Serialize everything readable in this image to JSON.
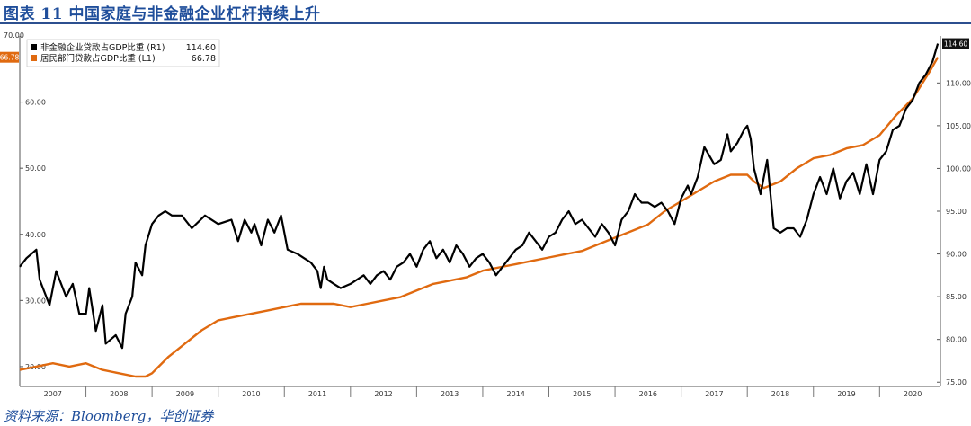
{
  "figure": {
    "title": "图表 11    中国家庭与非金融企业杠杆持续上升",
    "source": "资料来源：Bloomberg，华创证券"
  },
  "chart_data": {
    "type": "line",
    "title": "",
    "x_range": [
      2007.0,
      2020.92
    ],
    "x_ticks": [
      "2007",
      "2008",
      "2009",
      "2010",
      "2011",
      "2012",
      "2013",
      "2014",
      "2015",
      "2016",
      "2017",
      "2018",
      "2019",
      "2020"
    ],
    "y_left": {
      "ticks": [
        "20.00",
        "30.00",
        "40.00",
        "50.00",
        "60.00"
      ],
      "range": [
        17,
        70
      ],
      "top_tick_label": "70.00"
    },
    "y_right": {
      "ticks": [
        "75.00",
        "80.00",
        "85.00",
        "90.00",
        "95.00",
        "100.00",
        "105.00",
        "110.00"
      ],
      "range": [
        74.5,
        115.5
      ]
    },
    "grid": false,
    "legend_position": "top-left",
    "series": [
      {
        "name": "非金融企业贷款占GDP比重 (R1)",
        "legend_value": "114.60",
        "axis": "right",
        "color": "#000000",
        "x": [
          2007.0,
          2007.1,
          2007.25,
          2007.3,
          2007.45,
          2007.55,
          2007.7,
          2007.8,
          2007.9,
          2008.0,
          2008.05,
          2008.15,
          2008.25,
          2008.3,
          2008.45,
          2008.55,
          2008.6,
          2008.7,
          2008.75,
          2008.85,
          2008.9,
          2009.0,
          2009.1,
          2009.2,
          2009.3,
          2009.45,
          2009.6,
          2009.8,
          2010.0,
          2010.2,
          2010.3,
          2010.4,
          2010.5,
          2010.55,
          2010.65,
          2010.75,
          2010.85,
          2010.95,
          2011.05,
          2011.2,
          2011.3,
          2011.4,
          2011.5,
          2011.55,
          2011.6,
          2011.65,
          2011.75,
          2011.85,
          2012.0,
          2012.1,
          2012.2,
          2012.3,
          2012.4,
          2012.5,
          2012.6,
          2012.7,
          2012.8,
          2012.9,
          2013.0,
          2013.1,
          2013.2,
          2013.3,
          2013.4,
          2013.5,
          2013.6,
          2013.7,
          2013.8,
          2013.9,
          2014.0,
          2014.1,
          2014.2,
          2014.3,
          2014.4,
          2014.5,
          2014.6,
          2014.7,
          2014.8,
          2014.9,
          2015.0,
          2015.1,
          2015.2,
          2015.3,
          2015.4,
          2015.5,
          2015.6,
          2015.7,
          2015.8,
          2015.9,
          2016.0,
          2016.1,
          2016.2,
          2016.3,
          2016.4,
          2016.5,
          2016.6,
          2016.7,
          2016.8,
          2016.9,
          2017.0,
          2017.1,
          2017.15,
          2017.25,
          2017.35,
          2017.5,
          2017.6,
          2017.7,
          2017.75,
          2017.85,
          2017.95,
          2018.0,
          2018.05,
          2018.1,
          2018.2,
          2018.3,
          2018.4,
          2018.5,
          2018.6,
          2018.7,
          2018.8,
          2018.9,
          2019.0,
          2019.1,
          2019.2,
          2019.3,
          2019.4,
          2019.5,
          2019.6,
          2019.7,
          2019.8,
          2019.9,
          2020.0,
          2020.1,
          2020.2,
          2020.3,
          2020.4,
          2020.5,
          2020.6,
          2020.7,
          2020.8,
          2020.88
        ],
        "y": [
          88.5,
          89.5,
          90.5,
          87.0,
          84.0,
          88.0,
          85.0,
          86.5,
          83.0,
          83.0,
          86.0,
          81.0,
          84.0,
          79.5,
          80.5,
          79.0,
          83.0,
          85.0,
          89.0,
          87.5,
          91.0,
          93.5,
          94.5,
          95.0,
          94.5,
          94.5,
          93.0,
          94.5,
          93.5,
          94.0,
          91.5,
          94.0,
          92.5,
          93.5,
          91.0,
          94.0,
          92.5,
          94.5,
          90.5,
          90.0,
          89.5,
          89.0,
          88.0,
          86.0,
          88.5,
          87.0,
          86.5,
          86.0,
          86.5,
          87.0,
          87.5,
          86.5,
          87.5,
          88.0,
          87.0,
          88.5,
          89.0,
          90.0,
          88.5,
          90.5,
          91.5,
          89.5,
          90.5,
          89.0,
          91.0,
          90.0,
          88.5,
          89.5,
          90.0,
          89.0,
          87.5,
          88.5,
          89.5,
          90.5,
          91.0,
          92.5,
          91.5,
          90.5,
          92.0,
          92.5,
          94.0,
          95.0,
          93.5,
          94.0,
          93.0,
          92.0,
          93.5,
          92.5,
          91.0,
          94.0,
          95.0,
          97.0,
          96.0,
          96.0,
          95.5,
          96.0,
          95.0,
          93.5,
          96.5,
          98.0,
          97.0,
          99.0,
          102.5,
          100.5,
          101.0,
          104.0,
          102.0,
          103.0,
          104.5,
          105.0,
          103.5,
          100.0,
          97.0,
          101.0,
          93.0,
          92.5,
          93.0,
          93.0,
          92.0,
          94.0,
          97.0,
          99.0,
          97.0,
          100.0,
          96.5,
          98.5,
          99.5,
          97.0,
          100.5,
          97.0,
          101.0,
          102.0,
          104.5,
          105.0,
          107.0,
          108.0,
          110.0,
          111.0,
          112.5,
          114.6
        ]
      },
      {
        "name": "居民部门贷款占GDP比重 (L1)",
        "legend_value": "66.78",
        "axis": "left",
        "color": "#e06a10",
        "x": [
          2007.0,
          2007.25,
          2007.5,
          2007.75,
          2008.0,
          2008.25,
          2008.5,
          2008.75,
          2008.9,
          2009.0,
          2009.1,
          2009.25,
          2009.5,
          2009.75,
          2010.0,
          2010.25,
          2010.5,
          2010.75,
          2011.0,
          2011.25,
          2011.5,
          2011.75,
          2012.0,
          2012.25,
          2012.5,
          2012.75,
          2013.0,
          2013.25,
          2013.5,
          2013.75,
          2014.0,
          2014.25,
          2014.5,
          2014.75,
          2015.0,
          2015.25,
          2015.5,
          2015.75,
          2016.0,
          2016.25,
          2016.5,
          2016.75,
          2017.0,
          2017.25,
          2017.5,
          2017.75,
          2018.0,
          2018.1,
          2018.25,
          2018.5,
          2018.75,
          2019.0,
          2019.25,
          2019.5,
          2019.75,
          2020.0,
          2020.25,
          2020.5,
          2020.75,
          2020.88
        ],
        "y": [
          19.5,
          20.0,
          20.5,
          20.0,
          20.5,
          19.5,
          19.0,
          18.5,
          18.5,
          19.0,
          20.0,
          21.5,
          23.5,
          25.5,
          27.0,
          27.5,
          28.0,
          28.5,
          29.0,
          29.5,
          29.5,
          29.5,
          29.0,
          29.5,
          30.0,
          30.5,
          31.5,
          32.5,
          33.0,
          33.5,
          34.5,
          35.0,
          35.5,
          36.0,
          36.5,
          37.0,
          37.5,
          38.5,
          39.5,
          40.5,
          41.5,
          43.5,
          45.0,
          46.5,
          48.0,
          49.0,
          49.0,
          48.0,
          47.0,
          48.0,
          50.0,
          51.5,
          52.0,
          53.0,
          53.5,
          55.0,
          58.0,
          60.5,
          64.5,
          66.78
        ]
      }
    ]
  }
}
